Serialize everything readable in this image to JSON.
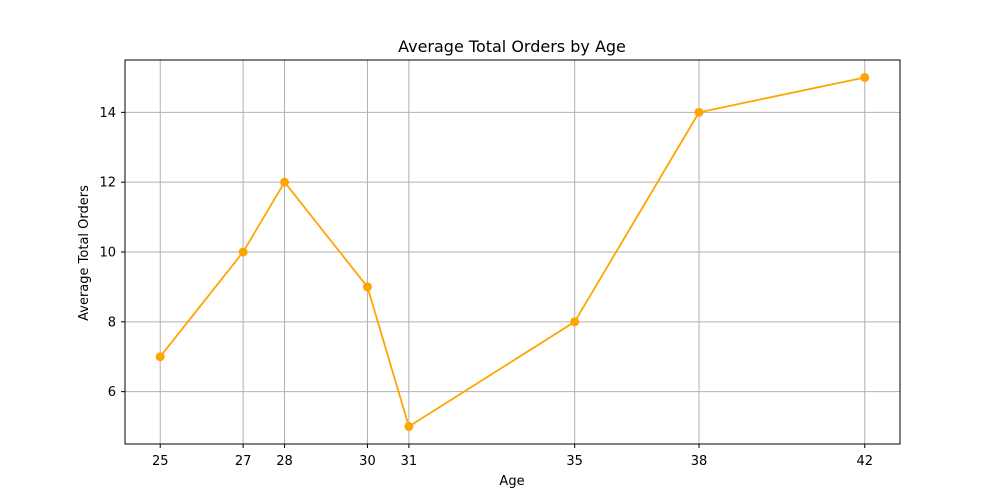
{
  "chart_data": {
    "type": "line",
    "title": "Average Total Orders by Age",
    "xlabel": "Age",
    "ylabel": "Average Total Orders",
    "x": [
      25,
      27,
      28,
      30,
      31,
      35,
      38,
      42
    ],
    "x_tick_labels": [
      "25",
      "27",
      "28",
      "30",
      "31",
      "35",
      "38",
      "42"
    ],
    "series": [
      {
        "values": [
          7,
          10,
          12,
          9,
          5,
          8,
          14,
          15
        ],
        "color": "#ffa500",
        "marker": "circle"
      }
    ],
    "y_ticks": [
      6,
      8,
      10,
      12,
      14
    ],
    "y_tick_labels": [
      "6",
      "8",
      "10",
      "12",
      "14"
    ],
    "xlim": [
      24.15,
      42.85
    ],
    "ylim": [
      4.5,
      15.5
    ],
    "grid": true,
    "grid_color": "#b0b0b0",
    "axis_color": "#000000"
  }
}
